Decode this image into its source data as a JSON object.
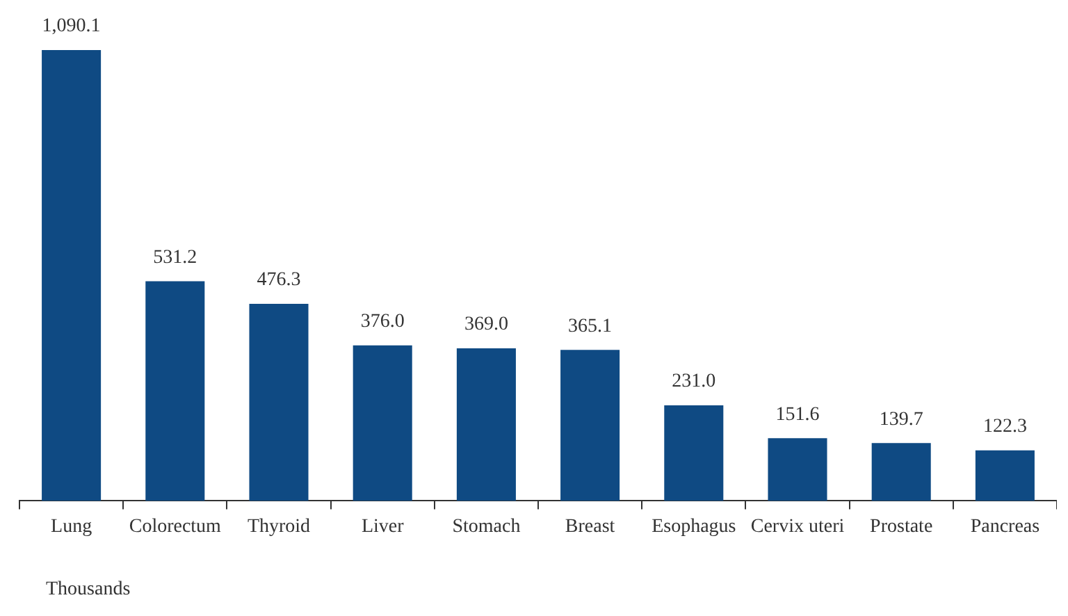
{
  "chart_data": {
    "type": "bar",
    "categories": [
      "Lung",
      "Colorectum",
      "Thyroid",
      "Liver",
      "Stomach",
      "Breast",
      "Esophagus",
      "Cervix uteri",
      "Prostate",
      "Pancreas"
    ],
    "values": [
      1090.1,
      531.2,
      476.3,
      376.0,
      369.0,
      365.1,
      231.0,
      151.6,
      139.7,
      122.3
    ],
    "value_labels": [
      "1,090.1",
      "531.2",
      "476.3",
      "376.0",
      "369.0",
      "365.1",
      "231.0",
      "151.6",
      "139.7",
      "122.3"
    ],
    "color": "#0f4a83",
    "annotations": [
      "Thousands"
    ],
    "legend": false,
    "grid": false
  }
}
